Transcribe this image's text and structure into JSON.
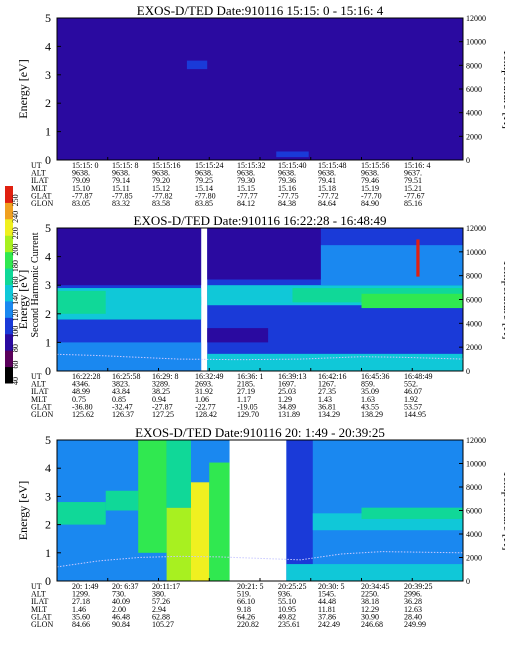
{
  "figure": {
    "colorbar": {
      "label": "Second Harmonic Current",
      "ticks": [
        "40",
        "60",
        "80",
        "100",
        "120",
        "140",
        "160",
        "180",
        "200",
        "220",
        "240",
        "250"
      ],
      "colors": [
        "#000000",
        "#5a005a",
        "#2a0aa0",
        "#1a3ad8",
        "#1a88f0",
        "#10c8d8",
        "#10d898",
        "#30e850",
        "#a8f020",
        "#f0f020",
        "#f0a020",
        "#e02010"
      ]
    },
    "panels": [
      {
        "title": "EXOS-D/TED   Date:910116  15:15: 0 - 15:16: 4",
        "ylabel_left": "Energy [eV]",
        "ylabel_right": "Temperature [K]",
        "yticks_left": [
          "0",
          "1",
          "2",
          "3",
          "4",
          "5"
        ],
        "yticks_right": [
          "0",
          "2000",
          "4000",
          "6000",
          "8000",
          "10000",
          "12000"
        ],
        "rows": [
          {
            "label": "UT",
            "values": [
              "15:15: 0",
              "15:15: 8",
              "15:15:16",
              "15:15:24",
              "15:15:32",
              "15:15:40",
              "15:15:48",
              "15:15:56",
              "15:16: 4"
            ]
          },
          {
            "label": "ALT",
            "values": [
              "9638.",
              "9638.",
              "9638.",
              "9638.",
              "9638.",
              "9638.",
              "9638.",
              "9638.",
              "9637."
            ]
          },
          {
            "label": "ILAT",
            "values": [
              "79.09",
              "79.14",
              "79.20",
              "79.25",
              "79.30",
              "79.36",
              "79.41",
              "79.46",
              "79.51"
            ]
          },
          {
            "label": "MLT",
            "values": [
              "15.10",
              "15.11",
              "15.12",
              "15.14",
              "15.15",
              "15.16",
              "15.18",
              "15.19",
              "15.21"
            ]
          },
          {
            "label": "GLAT",
            "values": [
              "-77.87",
              "-77.85",
              "-77.82",
              "-77.80",
              "-77.77",
              "-77.75",
              "-77.72",
              "-77.70",
              "-77.67"
            ]
          },
          {
            "label": "GLON",
            "values": [
              "83.05",
              "83.32",
              "83.58",
              "83.85",
              "84.12",
              "84.38",
              "84.64",
              "84.90",
              "85.16"
            ]
          }
        ]
      },
      {
        "title": "EXOS-D/TED   Date:910116  16:22:28 - 16:48:49",
        "ylabel_left": "Energy [eV]",
        "ylabel_right": "Temperature [K]",
        "yticks_left": [
          "0",
          "1",
          "2",
          "3",
          "4",
          "5"
        ],
        "yticks_right": [
          "0",
          "2000",
          "4000",
          "6000",
          "8000",
          "10000",
          "12000"
        ],
        "rows": [
          {
            "label": "UT",
            "values": [
              "16:22:28",
              "16:25:58",
              "16:29: 8",
              "16:32:49",
              "16:36: 1",
              "16:39:13",
              "16:42:16",
              "16:45:36",
              "16:48:49"
            ]
          },
          {
            "label": "ALT",
            "values": [
              "4346.",
              "3823.",
              "3289.",
              "2693.",
              "2185.",
              "1697.",
              "1267.",
              "859.",
              "552."
            ]
          },
          {
            "label": "ILAT",
            "values": [
              "48.99",
              "43.84",
              "38.25",
              "31.92",
              "27.19",
              "25.03",
              "27.35",
              "35.09",
              "46.07"
            ]
          },
          {
            "label": "MLT",
            "values": [
              "0.75",
              "0.85",
              "0.94",
              "1.06",
              "1.17",
              "1.29",
              "1.43",
              "1.63",
              "1.92"
            ]
          },
          {
            "label": "GLAT",
            "values": [
              "-36.80",
              "-32.47",
              "-27.87",
              "-22.77",
              "-19.05",
              "34.89",
              "36.81",
              "43.55",
              "53.57"
            ]
          },
          {
            "label": "GLON",
            "values": [
              "125.62",
              "126.37",
              "127.25",
              "128.42",
              "129.70",
              "131.89",
              "134.29",
              "138.29",
              "144.95"
            ]
          }
        ]
      },
      {
        "title": "EXOS-D/TED   Date:910116  20: 1:49 - 20:39:25",
        "ylabel_left": "Energy [eV]",
        "ylabel_right": "Temperature [K]",
        "yticks_left": [
          "0",
          "1",
          "2",
          "3",
          "4",
          "5"
        ],
        "yticks_right": [
          "0",
          "2000",
          "4000",
          "6000",
          "8000",
          "10000",
          "12000"
        ],
        "rows": [
          {
            "label": "UT",
            "values": [
              "20: 1:49",
              "20: 6:37",
              "20:11:17",
              "",
              "20:21: 5",
              "20:25:25",
              "20:30: 5",
              "20:34:45",
              "20:39:25"
            ]
          },
          {
            "label": "ALT",
            "values": [
              "1299.",
              "730.",
              "380.",
              "",
              "519.",
              "936.",
              "1545.",
              "2250.",
              "2996."
            ]
          },
          {
            "label": "ILAT",
            "values": [
              "27.18",
              "40.09",
              "57.26",
              "",
              "66.10",
              "55.10",
              "44.48",
              "38.18",
              "36.28"
            ]
          },
          {
            "label": "MLT",
            "values": [
              "1.46",
              "2.00",
              "2.94",
              "",
              "9.18",
              "10.95",
              "11.81",
              "12.29",
              "12.63"
            ]
          },
          {
            "label": "GLAT",
            "values": [
              "35.60",
              "46.48",
              "62.88",
              "",
              "64.26",
              "49.82",
              "37.86",
              "30.90",
              "28.40"
            ]
          },
          {
            "label": "GLON",
            "values": [
              "84.66",
              "90.84",
              "105.27",
              "",
              "220.82",
              "235.61",
              "242.49",
              "246.68",
              "249.99"
            ]
          }
        ]
      }
    ]
  },
  "chart_data": [
    {
      "type": "heatmap",
      "title": "EXOS-D/TED   Date:910116  15:15: 0 - 15:16: 4",
      "xlabel": "UT",
      "ylabel": "Energy [eV]",
      "ylabel_right": "Temperature [K]",
      "x_ticks": [
        "15:15: 0",
        "15:15: 8",
        "15:15:16",
        "15:15:24",
        "15:15:32",
        "15:15:40",
        "15:15:48",
        "15:15:56",
        "15:16: 4"
      ],
      "ylim": [
        0,
        5
      ],
      "ylim_right": [
        0,
        12000
      ],
      "color_scale": [
        40,
        250
      ],
      "segments": [
        {
          "x_range": [
            0,
            1
          ],
          "cells": [
            {
              "x": [
                0,
                1
              ],
              "y": [
                0,
                5
              ],
              "v": 75
            },
            {
              "x": [
                0.32,
                0.37
              ],
              "y": [
                3.2,
                3.5
              ],
              "v": 95
            },
            {
              "x": [
                0.54,
                0.62
              ],
              "y": [
                0.1,
                0.3
              ],
              "v": 95
            }
          ]
        }
      ],
      "temperature_line": []
    },
    {
      "type": "heatmap",
      "title": "EXOS-D/TED   Date:910116  16:22:28 - 16:48:49",
      "xlabel": "UT",
      "ylabel": "Energy [eV]",
      "ylabel_right": "Temperature [K]",
      "x_ticks": [
        "16:22:28",
        "16:25:58",
        "16:29: 8",
        "16:32:49",
        "16:36: 1",
        "16:39:13",
        "16:42:16",
        "16:45:36",
        "16:48:49"
      ],
      "ylim": [
        0,
        5
      ],
      "ylim_right": [
        0,
        12000
      ],
      "color_scale": [
        40,
        250
      ],
      "segments": [
        {
          "x_range": [
            0,
            0.355
          ],
          "cells": [
            {
              "x": [
                0,
                0.355
              ],
              "y": [
                0,
                5
              ],
              "v": 100
            },
            {
              "x": [
                0,
                0.355
              ],
              "y": [
                3.0,
                5
              ],
              "v": 82
            },
            {
              "x": [
                0,
                0.355
              ],
              "y": [
                0,
                1.0
              ],
              "v": 118
            },
            {
              "x": [
                0,
                0.355
              ],
              "y": [
                1.8,
                2.9
              ],
              "v": 128
            },
            {
              "x": [
                0,
                0.12
              ],
              "y": [
                2.0,
                2.8
              ],
              "v": 150
            },
            {
              "x": [
                0.14,
                0.355
              ],
              "y": [
                2.3,
                2.6
              ],
              "v": 140
            }
          ]
        },
        {
          "x_range": [
            0.37,
            1
          ],
          "cells": [
            {
              "x": [
                0.37,
                1
              ],
              "y": [
                0,
                5
              ],
              "v": 108
            },
            {
              "x": [
                0.37,
                0.65
              ],
              "y": [
                3.2,
                5
              ],
              "v": 80
            },
            {
              "x": [
                0.37,
                0.52
              ],
              "y": [
                1.0,
                1.5
              ],
              "v": 75
            },
            {
              "x": [
                0.37,
                1
              ],
              "y": [
                0,
                0.6
              ],
              "v": 128
            },
            {
              "x": [
                0.37,
                1
              ],
              "y": [
                2.3,
                3.0
              ],
              "v": 128
            },
            {
              "x": [
                0.58,
                1
              ],
              "y": [
                2.4,
                2.9
              ],
              "v": 145
            },
            {
              "x": [
                0.75,
                1
              ],
              "y": [
                2.2,
                2.7
              ],
              "v": 165
            },
            {
              "x": [
                0.65,
                1
              ],
              "y": [
                3.0,
                4.4
              ],
              "v": 118
            },
            {
              "x": [
                0.885,
                0.893
              ],
              "y": [
                3.3,
                4.6
              ],
              "v": 240
            }
          ]
        }
      ],
      "temperature_line": [
        [
          0,
          1400
        ],
        [
          0.1,
          1300
        ],
        [
          0.2,
          1150
        ],
        [
          0.3,
          1000
        ],
        [
          0.45,
          950
        ],
        [
          0.6,
          1000
        ],
        [
          0.75,
          1200
        ],
        [
          0.85,
          1150
        ],
        [
          0.95,
          1050
        ],
        [
          1,
          1000
        ]
      ]
    },
    {
      "type": "heatmap",
      "title": "EXOS-D/TED   Date:910116  20: 1:49 - 20:39:25",
      "xlabel": "UT",
      "ylabel": "Energy [eV]",
      "ylabel_right": "Temperature [K]",
      "x_ticks": [
        "20: 1:49",
        "20: 6:37",
        "20:11:17",
        "",
        "20:21: 5",
        "20:25:25",
        "20:30: 5",
        "20:34:45",
        "20:39:25"
      ],
      "ylim": [
        0,
        5
      ],
      "ylim_right": [
        0,
        12000
      ],
      "color_scale": [
        40,
        250
      ],
      "segments": [
        {
          "x_range": [
            0,
            0.425
          ],
          "cells": [
            {
              "x": [
                0,
                0.425
              ],
              "y": [
                0,
                5
              ],
              "v": 115
            },
            {
              "x": [
                0,
                0.12
              ],
              "y": [
                2.0,
                2.8
              ],
              "v": 145
            },
            {
              "x": [
                0.12,
                0.2
              ],
              "y": [
                2.5,
                3.2
              ],
              "v": 155
            },
            {
              "x": [
                0.2,
                0.27
              ],
              "y": [
                1.0,
                5.0
              ],
              "v": 165
            },
            {
              "x": [
                0.27,
                0.33
              ],
              "y": [
                0,
                2.6
              ],
              "v": 182
            },
            {
              "x": [
                0.27,
                0.33
              ],
              "y": [
                2.6,
                5
              ],
              "v": 150
            },
            {
              "x": [
                0.33,
                0.375
              ],
              "y": [
                0,
                3.5
              ],
              "v": 200
            },
            {
              "x": [
                0.375,
                0.425
              ],
              "y": [
                0,
                4.2
              ],
              "v": 175
            }
          ]
        },
        {
          "x_range": [
            0.565,
            1
          ],
          "cells": [
            {
              "x": [
                0.565,
                1
              ],
              "y": [
                0,
                5
              ],
              "v": 122
            },
            {
              "x": [
                0.565,
                0.63
              ],
              "y": [
                0,
                5
              ],
              "v": 105
            },
            {
              "x": [
                0.63,
                1
              ],
              "y": [
                1.8,
                2.4
              ],
              "v": 140
            },
            {
              "x": [
                0.75,
                1
              ],
              "y": [
                2.2,
                2.6
              ],
              "v": 150
            },
            {
              "x": [
                0.565,
                1
              ],
              "y": [
                0,
                0.6
              ],
              "v": 135
            }
          ]
        }
      ],
      "temperature_line": [
        [
          0,
          1200
        ],
        [
          0.1,
          1700
        ],
        [
          0.2,
          2000
        ],
        [
          0.3,
          2100
        ],
        [
          0.4,
          2050
        ],
        [
          0.6,
          1800
        ],
        [
          0.7,
          2300
        ],
        [
          0.8,
          2500
        ],
        [
          0.9,
          2450
        ],
        [
          1,
          2400
        ]
      ]
    }
  ]
}
